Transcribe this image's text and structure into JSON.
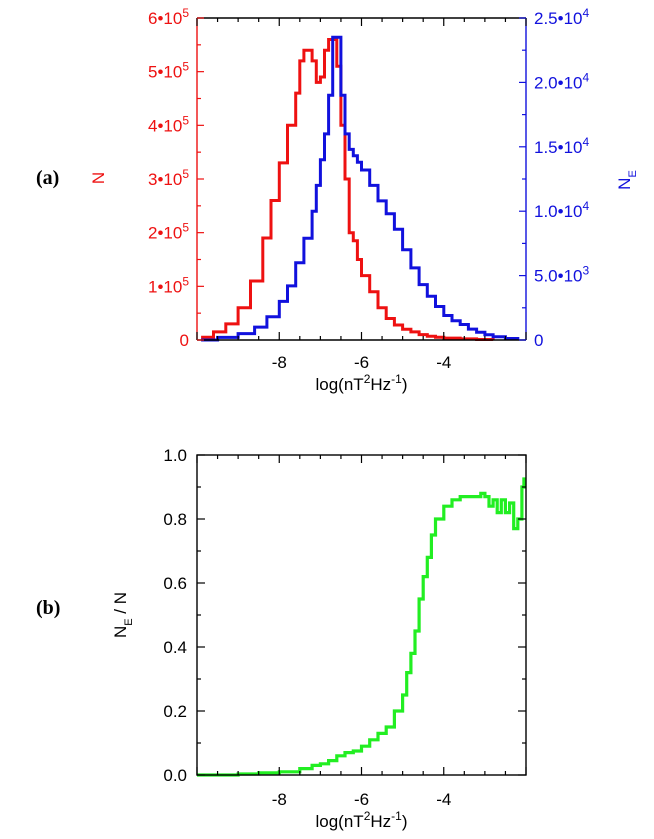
{
  "panels": [
    {
      "label": "(a)"
    },
    {
      "label": "(b)"
    }
  ],
  "colors": {
    "red": "#ee1111",
    "blue": "#1111dd",
    "green": "#22ee22",
    "axis": "#000000"
  },
  "chart_data": [
    {
      "type": "line",
      "panel": "(a)",
      "xlim": [
        -10,
        -2
      ],
      "x_ticks": [
        -8,
        -6,
        -4
      ],
      "xlabel": {
        "base": "log(nT",
        "sup1": "2",
        "mid": "Hz",
        "sup2": "-1",
        "end": ")"
      },
      "y_left": {
        "label": "N",
        "lim": [
          0,
          600000
        ],
        "ticks": [
          {
            "value": 0,
            "text": "0"
          },
          {
            "value": 100000,
            "text": "1•10",
            "sup": "5"
          },
          {
            "value": 200000,
            "text": "2•10",
            "sup": "5"
          },
          {
            "value": 300000,
            "text": "3•10",
            "sup": "5"
          },
          {
            "value": 400000,
            "text": "4•10",
            "sup": "5"
          },
          {
            "value": 500000,
            "text": "5•10",
            "sup": "5"
          },
          {
            "value": 600000,
            "text": "6•10",
            "sup": "5"
          }
        ]
      },
      "y_right": {
        "label": "N",
        "label_sub": "E",
        "lim": [
          0,
          25000
        ],
        "ticks": [
          {
            "value": 0,
            "text": "0"
          },
          {
            "value": 5000,
            "text": "5.0•10",
            "sup": "3"
          },
          {
            "value": 10000,
            "text": "1.0•10",
            "sup": "4"
          },
          {
            "value": 15000,
            "text": "1.5•10",
            "sup": "4"
          },
          {
            "value": 20000,
            "text": "2.0•10",
            "sup": "4"
          },
          {
            "value": 25000,
            "text": "2.5•10",
            "sup": "4"
          }
        ]
      },
      "series": [
        {
          "axis": "left",
          "color": "#ee1111",
          "x": [
            -9.9,
            -9.6,
            -9.3,
            -9.0,
            -8.7,
            -8.4,
            -8.2,
            -8.0,
            -7.8,
            -7.6,
            -7.5,
            -7.4,
            -7.3,
            -7.2,
            -7.1,
            -7.0,
            -6.9,
            -6.8,
            -6.7,
            -6.6,
            -6.5,
            -6.4,
            -6.3,
            -6.2,
            -6.1,
            -6.0,
            -5.8,
            -5.6,
            -5.4,
            -5.2,
            -5.0,
            -4.8,
            -4.6,
            -4.4,
            -4.2,
            -4.0,
            -3.6,
            -3.2,
            -2.8
          ],
          "y": [
            5000,
            15000,
            30000,
            60000,
            110000,
            190000,
            260000,
            330000,
            400000,
            460000,
            520000,
            540000,
            540000,
            520000,
            480000,
            490000,
            540000,
            560000,
            560000,
            510000,
            400000,
            300000,
            200000,
            185000,
            150000,
            120000,
            90000,
            60000,
            40000,
            28000,
            20000,
            15000,
            10000,
            7000,
            5000,
            3500,
            2000,
            1000,
            0
          ]
        },
        {
          "axis": "right",
          "color": "#1111dd",
          "x": [
            -9.9,
            -9.5,
            -9.0,
            -8.6,
            -8.3,
            -8.0,
            -7.8,
            -7.6,
            -7.4,
            -7.2,
            -7.1,
            -7.0,
            -6.9,
            -6.8,
            -6.7,
            -6.6,
            -6.5,
            -6.4,
            -6.3,
            -6.2,
            -6.1,
            -6.0,
            -5.8,
            -5.6,
            -5.4,
            -5.2,
            -5.0,
            -4.8,
            -4.6,
            -4.4,
            -4.2,
            -4.0,
            -3.8,
            -3.6,
            -3.4,
            -3.2,
            -3.0,
            -2.8,
            -2.5,
            -2.2
          ],
          "y": [
            0,
            200,
            500,
            1000,
            1800,
            3000,
            4200,
            6000,
            7900,
            10000,
            12000,
            14000,
            16000,
            19000,
            23500,
            23500,
            19000,
            16000,
            14800,
            14300,
            13800,
            13200,
            12000,
            10800,
            9800,
            8600,
            7000,
            5600,
            4300,
            3400,
            2600,
            1900,
            1500,
            1200,
            850,
            600,
            400,
            250,
            120,
            50
          ]
        }
      ]
    },
    {
      "type": "line",
      "panel": "(b)",
      "xlim": [
        -10,
        -2
      ],
      "x_ticks": [
        -8,
        -6,
        -4
      ],
      "ylim": [
        0,
        1
      ],
      "y_ticks": [
        {
          "value": 0,
          "text": "0.0"
        },
        {
          "value": 0.2,
          "text": "0.2"
        },
        {
          "value": 0.4,
          "text": "0.4"
        },
        {
          "value": 0.6,
          "text": "0.6"
        },
        {
          "value": 0.8,
          "text": "0.8"
        },
        {
          "value": 1.0,
          "text": "1.0"
        }
      ],
      "xlabel": {
        "base": "log(nT",
        "sup1": "2",
        "mid": "Hz",
        "sup2": "-1",
        "end": ")"
      },
      "ylabel": {
        "pre": "N",
        "sub": "E",
        "post": " / N"
      },
      "series": [
        {
          "color": "#22ee22",
          "x": [
            -10,
            -9.5,
            -9.0,
            -8.5,
            -8.0,
            -7.5,
            -7.2,
            -7.0,
            -6.8,
            -6.6,
            -6.4,
            -6.2,
            -6.0,
            -5.8,
            -5.6,
            -5.4,
            -5.2,
            -5.0,
            -4.9,
            -4.8,
            -4.7,
            -4.6,
            -4.5,
            -4.4,
            -4.3,
            -4.2,
            -4.0,
            -3.8,
            -3.6,
            -3.4,
            -3.2,
            -3.1,
            -3.0,
            -2.9,
            -2.8,
            -2.7,
            -2.6,
            -2.5,
            -2.4,
            -2.3,
            -2.2,
            -2.1,
            -2.05
          ],
          "y": [
            0,
            0,
            0.003,
            0.007,
            0.01,
            0.02,
            0.03,
            0.035,
            0.045,
            0.06,
            0.07,
            0.075,
            0.09,
            0.11,
            0.13,
            0.15,
            0.2,
            0.25,
            0.32,
            0.38,
            0.45,
            0.55,
            0.62,
            0.68,
            0.75,
            0.8,
            0.84,
            0.86,
            0.87,
            0.87,
            0.87,
            0.88,
            0.87,
            0.84,
            0.86,
            0.82,
            0.86,
            0.82,
            0.85,
            0.77,
            0.8,
            0.9,
            0.93
          ]
        }
      ]
    }
  ]
}
